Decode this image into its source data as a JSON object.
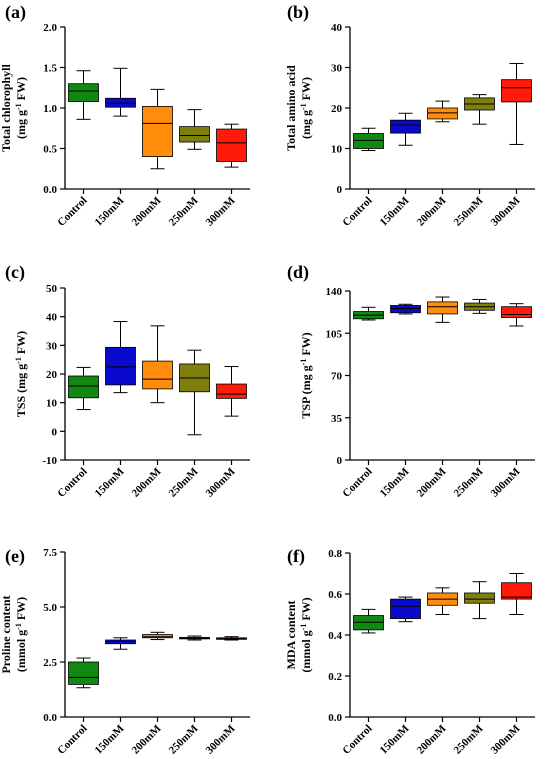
{
  "chart_data": [
    {
      "panel": "(a)",
      "type": "box",
      "ylabel_lines": [
        "Total chlorophyll",
        "(mg g|-1| FW)"
      ],
      "ylim": [
        0,
        2.0
      ],
      "yticks": [
        0.0,
        0.5,
        1.0,
        1.5,
        2.0
      ],
      "ytick_labels": [
        "0.0",
        "0.5",
        "1.0",
        "1.5",
        "2.0"
      ],
      "categories": [
        "Control",
        "150mM",
        "200mM",
        "250mM",
        "300mM"
      ],
      "boxes": [
        {
          "min": 0.86,
          "q1": 1.08,
          "median": 1.21,
          "q3": 1.3,
          "max": 1.46
        },
        {
          "min": 0.9,
          "q1": 1.01,
          "median": 1.06,
          "q3": 1.12,
          "max": 1.49
        },
        {
          "min": 0.25,
          "q1": 0.4,
          "median": 0.81,
          "q3": 1.02,
          "max": 1.23
        },
        {
          "min": 0.49,
          "q1": 0.58,
          "median": 0.66,
          "q3": 0.77,
          "max": 0.98
        },
        {
          "min": 0.27,
          "q1": 0.34,
          "median": 0.57,
          "q3": 0.74,
          "max": 0.8
        }
      ]
    },
    {
      "panel": "(b)",
      "type": "box",
      "ylabel_lines": [
        "Total amino acid",
        "(mg g|-1| FW)"
      ],
      "ylim": [
        0,
        40
      ],
      "yticks": [
        0,
        10,
        20,
        30,
        40
      ],
      "ytick_labels": [
        "0",
        "10",
        "20",
        "30",
        "40"
      ],
      "categories": [
        "Control",
        "150mM",
        "200mM",
        "250mM",
        "300mM"
      ],
      "boxes": [
        {
          "min": 9.5,
          "q1": 10.0,
          "median": 12.0,
          "q3": 13.7,
          "max": 15.0
        },
        {
          "min": 10.8,
          "q1": 13.8,
          "median": 15.8,
          "q3": 17.0,
          "max": 18.7
        },
        {
          "min": 16.6,
          "q1": 17.3,
          "median": 18.8,
          "q3": 20.0,
          "max": 21.7
        },
        {
          "min": 16.0,
          "q1": 19.5,
          "median": 21.0,
          "q3": 22.5,
          "max": 23.3
        },
        {
          "min": 11.0,
          "q1": 21.5,
          "median": 25.0,
          "q3": 27.0,
          "max": 31.0
        }
      ]
    },
    {
      "panel": "(c)",
      "type": "box",
      "ylabel_lines": [
        "TSS (mg g|-1| FW)"
      ],
      "ylim": [
        -10,
        50
      ],
      "yticks": [
        -10,
        0,
        10,
        20,
        30,
        40,
        50
      ],
      "ytick_labels": [
        "-10",
        "0",
        "10",
        "20",
        "30",
        "40",
        "50"
      ],
      "categories": [
        "Control",
        "150mM",
        "200mM",
        "250mM",
        "300mM"
      ],
      "boxes": [
        {
          "min": 7.6,
          "q1": 11.7,
          "median": 15.8,
          "q3": 19.3,
          "max": 22.3
        },
        {
          "min": 13.5,
          "q1": 16.2,
          "median": 22.5,
          "q3": 29.3,
          "max": 38.3
        },
        {
          "min": 10.0,
          "q1": 14.8,
          "median": 18.2,
          "q3": 24.5,
          "max": 36.8
        },
        {
          "min": -1.2,
          "q1": 13.8,
          "median": 18.6,
          "q3": 23.5,
          "max": 28.3
        },
        {
          "min": 5.3,
          "q1": 11.5,
          "median": 13.0,
          "q3": 16.5,
          "max": 22.6
        }
      ]
    },
    {
      "panel": "(d)",
      "type": "box",
      "ylabel_lines": [
        "TSP (mg g|-1| FW)"
      ],
      "ylim": [
        0,
        140
      ],
      "yticks": [
        0,
        35,
        70,
        105,
        140
      ],
      "ytick_labels": [
        "0",
        "35",
        "70",
        "105",
        "140"
      ],
      "categories": [
        "Control",
        "150mM",
        "200mM",
        "250mM",
        "300mM"
      ],
      "boxes": [
        {
          "min": 116.0,
          "q1": 117.0,
          "median": 120.0,
          "q3": 123.0,
          "max": 126.5
        },
        {
          "min": 121.0,
          "q1": 122.0,
          "median": 125.5,
          "q3": 128.0,
          "max": 129.0
        },
        {
          "min": 114.0,
          "q1": 121.0,
          "median": 127.0,
          "q3": 131.0,
          "max": 135.0
        },
        {
          "min": 121.5,
          "q1": 124.0,
          "median": 127.0,
          "q3": 130.0,
          "max": 133.0
        },
        {
          "min": 111.0,
          "q1": 118.0,
          "median": 120.5,
          "q3": 127.0,
          "max": 129.5
        }
      ]
    },
    {
      "panel": "(e)",
      "type": "box",
      "ylabel_lines": [
        "Proline content",
        "(mmol g|-1| FW)"
      ],
      "ylim": [
        0,
        7.5
      ],
      "yticks": [
        0.0,
        2.5,
        5.0,
        7.5
      ],
      "ytick_labels": [
        "0.0",
        "2.5",
        "5.0",
        "7.5"
      ],
      "categories": [
        "Control",
        "150mM",
        "200mM",
        "250mM",
        "300mM"
      ],
      "boxes": [
        {
          "min": 1.33,
          "q1": 1.48,
          "median": 1.8,
          "q3": 2.5,
          "max": 2.68
        },
        {
          "min": 3.08,
          "q1": 3.33,
          "median": 3.43,
          "q3": 3.5,
          "max": 3.6
        },
        {
          "min": 3.52,
          "q1": 3.6,
          "median": 3.65,
          "q3": 3.75,
          "max": 3.85
        },
        {
          "min": 3.5,
          "q1": 3.55,
          "median": 3.58,
          "q3": 3.62,
          "max": 3.68
        },
        {
          "min": 3.5,
          "q1": 3.53,
          "median": 3.56,
          "q3": 3.6,
          "max": 3.65
        }
      ]
    },
    {
      "panel": "(f)",
      "type": "box",
      "ylabel_lines": [
        "MDA content",
        "(mmol g|-1| FW)"
      ],
      "ylim": [
        0.0,
        0.8
      ],
      "yticks": [
        0.0,
        0.2,
        0.4,
        0.6,
        0.8
      ],
      "ytick_labels": [
        "0.0",
        "0.2",
        "0.4",
        "0.6",
        "0.8"
      ],
      "categories": [
        "Control",
        "150mM",
        "200mM",
        "250mM",
        "300mM"
      ],
      "boxes": [
        {
          "min": 0.41,
          "q1": 0.425,
          "median": 0.462,
          "q3": 0.495,
          "max": 0.525
        },
        {
          "min": 0.465,
          "q1": 0.48,
          "median": 0.54,
          "q3": 0.575,
          "max": 0.585
        },
        {
          "min": 0.5,
          "q1": 0.545,
          "median": 0.575,
          "q3": 0.605,
          "max": 0.63
        },
        {
          "min": 0.48,
          "q1": 0.555,
          "median": 0.575,
          "q3": 0.605,
          "max": 0.66
        },
        {
          "min": 0.5,
          "q1": 0.575,
          "median": 0.585,
          "q3": 0.655,
          "max": 0.7
        }
      ]
    }
  ],
  "colors": {
    "Control": "#118811",
    "150mM": "#0a0acc",
    "200mM": "#ff8c0a",
    "250mM": "#7f7f0e",
    "300mM": "#ff1a0a",
    "median": "#000000",
    "axis": "#000000"
  }
}
